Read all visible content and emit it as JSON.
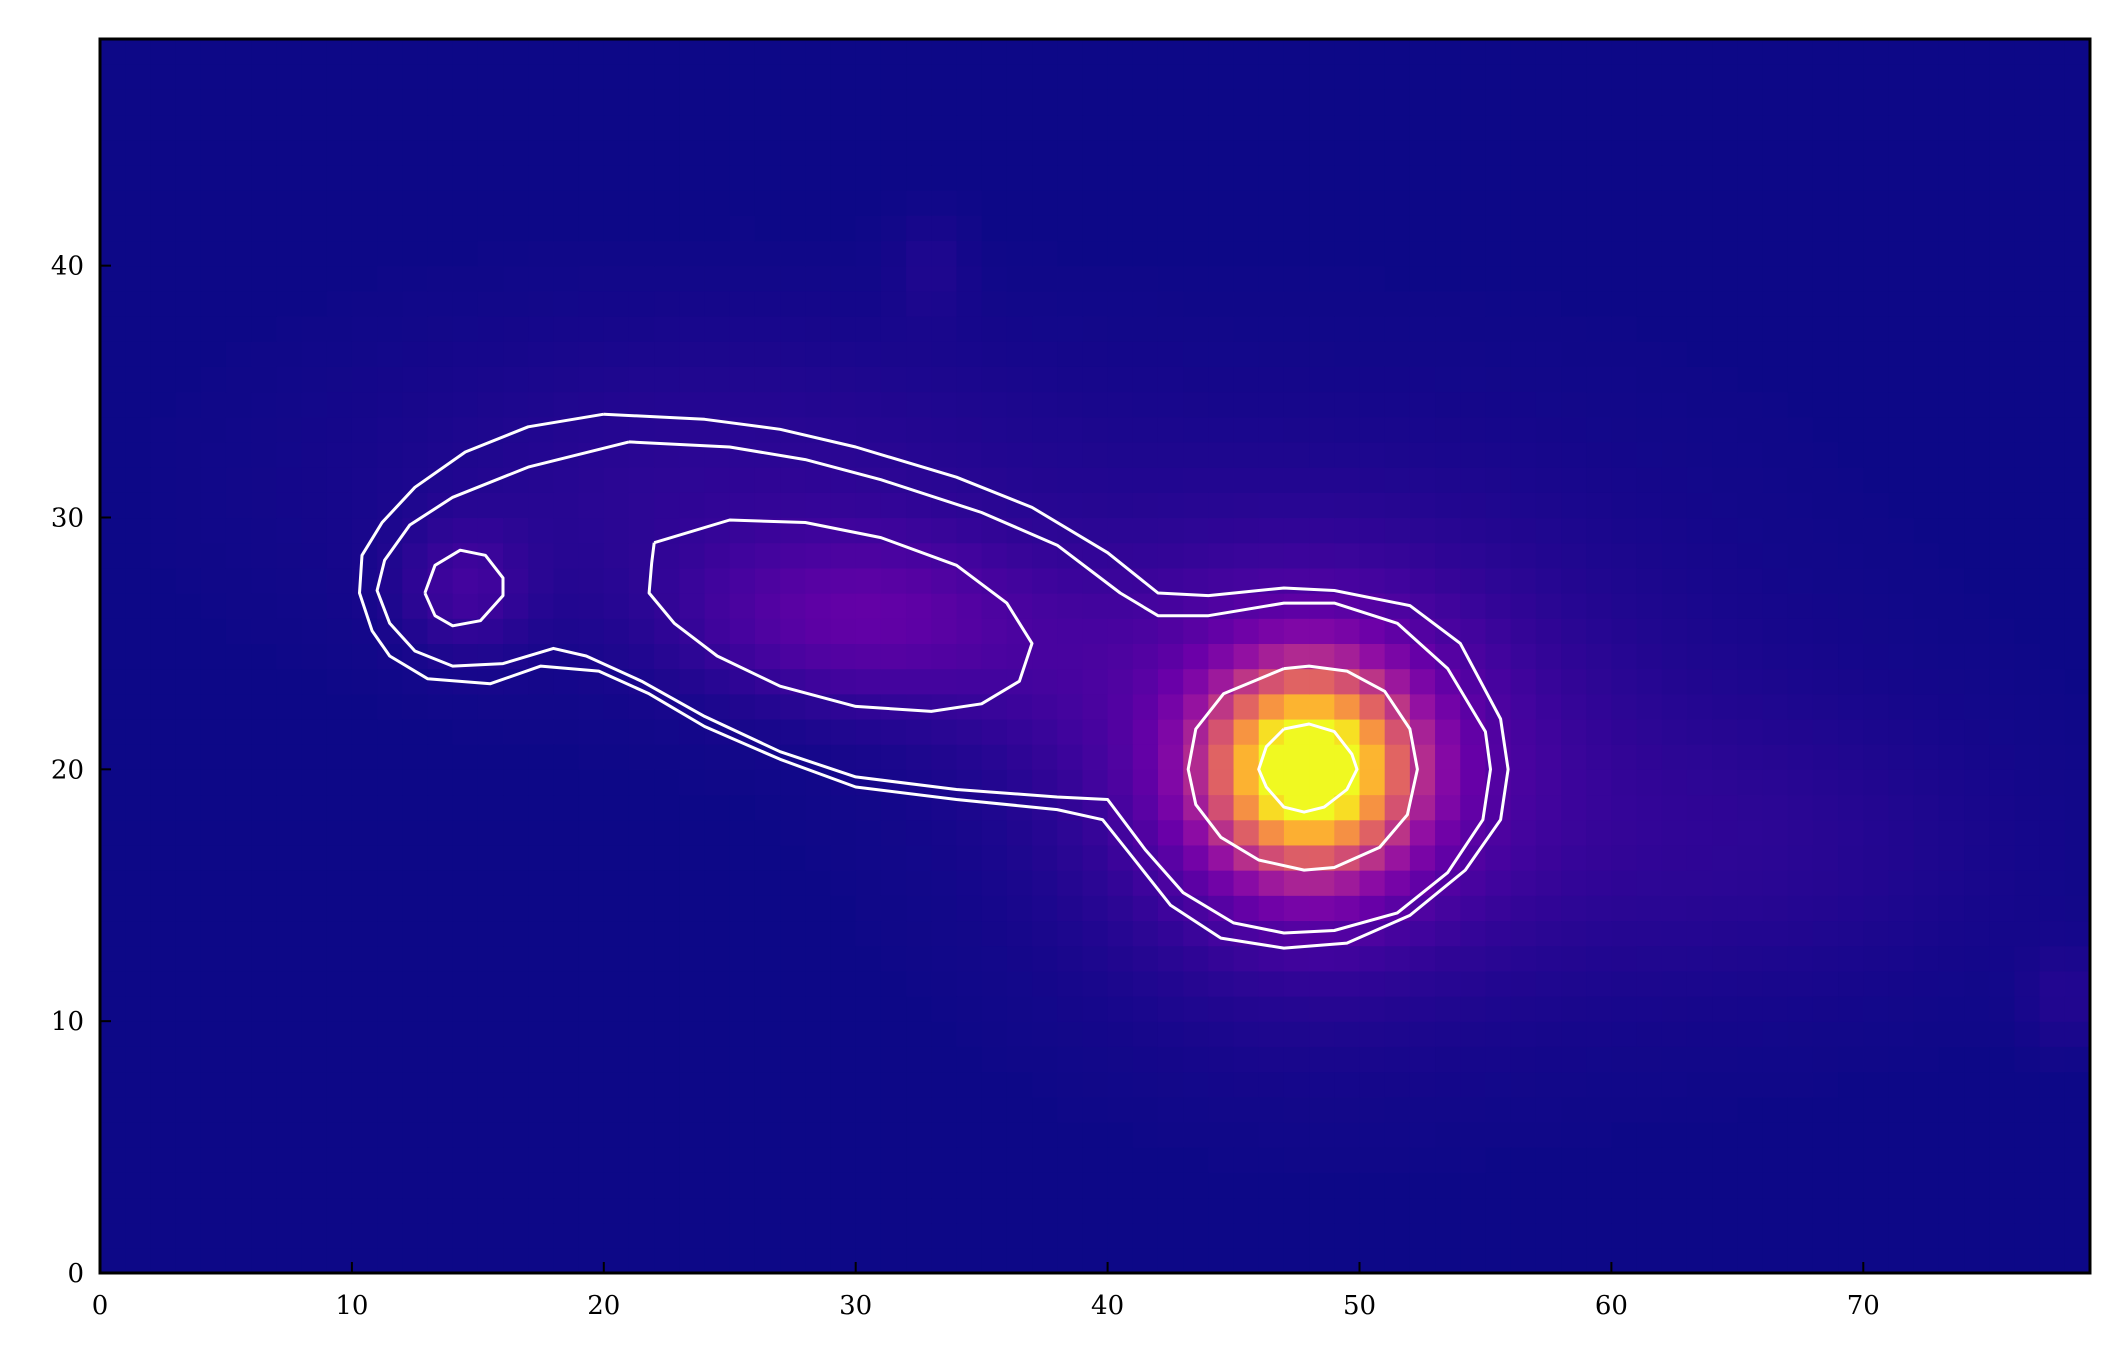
{
  "chart_data": {
    "type": "heatmap",
    "title": "",
    "xlabel": "",
    "ylabel": "",
    "xlim": [
      0,
      79
    ],
    "ylim": [
      0,
      49
    ],
    "grid": false,
    "legend": "none",
    "colormap": "plasma",
    "x_ticks": [
      {
        "value": 0,
        "label": "0"
      },
      {
        "value": 10,
        "label": "10"
      },
      {
        "value": 20,
        "label": "20"
      },
      {
        "value": 30,
        "label": "30"
      },
      {
        "value": 40,
        "label": "40"
      },
      {
        "value": 50,
        "label": "50"
      },
      {
        "value": 60,
        "label": "60"
      },
      {
        "value": 70,
        "label": "70"
      }
    ],
    "y_ticks": [
      {
        "value": 0,
        "label": "0"
      },
      {
        "value": 10,
        "label": "10"
      },
      {
        "value": 20,
        "label": "20"
      },
      {
        "value": 30,
        "label": "30"
      },
      {
        "value": 40,
        "label": "40"
      }
    ],
    "image": {
      "grid_shape": [
        49,
        79
      ],
      "background": "#0d0887",
      "components": [
        {
          "shape": "gaussian",
          "center": [
            48,
            20
          ],
          "sigma": [
            2.6,
            2.6
          ],
          "amplitude": 1.0
        },
        {
          "shape": "gaussian",
          "center": [
            48,
            20
          ],
          "sigma": [
            5.5,
            5.0
          ],
          "amplitude": 0.18
        },
        {
          "shape": "gaussian",
          "center": [
            30,
            26
          ],
          "sigma": [
            4.5,
            2.2
          ],
          "amplitude": 0.14
        },
        {
          "shape": "gaussian",
          "center": [
            14.5,
            27.2
          ],
          "sigma": [
            1.8,
            1.8
          ],
          "amplitude": 0.08
        },
        {
          "shape": "gaussian",
          "center": [
            25,
            31
          ],
          "sigma": [
            10.0,
            4.5
          ],
          "amplitude": 0.06
        },
        {
          "shape": "gaussian",
          "center": [
            51,
            22
          ],
          "sigma": [
            10.0,
            7.5
          ],
          "amplitude": 0.055
        },
        {
          "shape": "gaussian",
          "center": [
            66,
            17
          ],
          "sigma": [
            7.0,
            4.0
          ],
          "amplitude": 0.045
        },
        {
          "shape": "gaussian",
          "center": [
            38,
            24
          ],
          "sigma": [
            5.0,
            3.0
          ],
          "amplitude": 0.04
        },
        {
          "shape": "gaussian",
          "center": [
            33,
            40
          ],
          "sigma": [
            1.0,
            1.5
          ],
          "amplitude": 0.03
        },
        {
          "shape": "gaussian",
          "center": [
            78,
            11
          ],
          "sigma": [
            1.2,
            1.5
          ],
          "amplitude": 0.04
        }
      ]
    },
    "contours": {
      "color": "#ffffff",
      "lines": [
        [
          [
            20,
            34.1
          ],
          [
            24,
            33.9
          ],
          [
            27,
            33.5
          ],
          [
            30,
            32.8
          ],
          [
            34,
            31.6
          ],
          [
            37,
            30.4
          ],
          [
            40,
            28.6
          ],
          [
            42,
            27
          ],
          [
            44,
            26.9
          ],
          [
            47,
            27.2
          ],
          [
            49,
            27.1
          ],
          [
            52,
            26.5
          ],
          [
            54,
            25
          ],
          [
            55.6,
            22
          ],
          [
            55.9,
            20
          ],
          [
            55.6,
            18
          ],
          [
            54.2,
            16
          ],
          [
            52,
            14.2
          ],
          [
            49.5,
            13.1
          ],
          [
            47,
            12.9
          ],
          [
            44.5,
            13.3
          ],
          [
            42.5,
            14.6
          ],
          [
            41,
            16.5
          ],
          [
            39.8,
            18
          ],
          [
            38,
            18.4
          ],
          [
            34,
            18.8
          ],
          [
            30,
            19.3
          ],
          [
            27,
            20.4
          ],
          [
            24,
            21.7
          ],
          [
            21.8,
            23
          ],
          [
            19.8,
            23.9
          ],
          [
            17.5,
            24.1
          ],
          [
            15.5,
            23.4
          ],
          [
            13,
            23.6
          ],
          [
            11.5,
            24.5
          ],
          [
            10.8,
            25.5
          ],
          [
            10.3,
            27
          ],
          [
            10.4,
            28.5
          ],
          [
            11.2,
            29.8
          ],
          [
            12.5,
            31.2
          ],
          [
            14.5,
            32.6
          ],
          [
            17,
            33.6
          ],
          [
            20,
            34.1
          ]
        ],
        [
          [
            21,
            33
          ],
          [
            25,
            32.8
          ],
          [
            28,
            32.3
          ],
          [
            31,
            31.5
          ],
          [
            35,
            30.2
          ],
          [
            38,
            28.9
          ],
          [
            40.5,
            27
          ],
          [
            42,
            26.1
          ],
          [
            44,
            26.1
          ],
          [
            47,
            26.6
          ],
          [
            49,
            26.6
          ],
          [
            51.5,
            25.8
          ],
          [
            53.5,
            24
          ],
          [
            55,
            21.5
          ],
          [
            55.2,
            20
          ],
          [
            54.9,
            18
          ],
          [
            53.5,
            15.9
          ],
          [
            51.5,
            14.3
          ],
          [
            49,
            13.6
          ],
          [
            47,
            13.5
          ],
          [
            45,
            13.9
          ],
          [
            43,
            15.1
          ],
          [
            41.5,
            16.8
          ],
          [
            40,
            18.8
          ],
          [
            38,
            18.9
          ],
          [
            34,
            19.2
          ],
          [
            30,
            19.7
          ],
          [
            27,
            20.7
          ],
          [
            24,
            22.1
          ],
          [
            21.5,
            23.5
          ],
          [
            19.3,
            24.5
          ],
          [
            18,
            24.8
          ],
          [
            16,
            24.2
          ],
          [
            14,
            24.1
          ],
          [
            12.5,
            24.7
          ],
          [
            11.5,
            25.8
          ],
          [
            11,
            27.1
          ],
          [
            11.3,
            28.3
          ],
          [
            12.3,
            29.7
          ],
          [
            14,
            30.8
          ],
          [
            17,
            32
          ],
          [
            21,
            33
          ]
        ],
        [
          [
            22,
            29
          ],
          [
            25,
            29.9
          ],
          [
            28,
            29.8
          ],
          [
            31,
            29.2
          ],
          [
            34,
            28.1
          ],
          [
            36,
            26.6
          ],
          [
            37,
            25
          ],
          [
            36.5,
            23.5
          ],
          [
            35,
            22.6
          ],
          [
            33,
            22.3
          ],
          [
            30,
            22.5
          ],
          [
            27,
            23.3
          ],
          [
            24.5,
            24.5
          ],
          [
            22.8,
            25.8
          ],
          [
            21.8,
            27
          ],
          [
            21.9,
            28.2
          ],
          [
            22,
            29
          ]
        ],
        [
          [
            12.9,
            27
          ],
          [
            13.3,
            28.1
          ],
          [
            14.3,
            28.7
          ],
          [
            15.3,
            28.5
          ],
          [
            16,
            27.6
          ],
          [
            16,
            26.9
          ],
          [
            15.1,
            25.9
          ],
          [
            14,
            25.7
          ],
          [
            13.3,
            26.1
          ],
          [
            12.9,
            27
          ]
        ],
        [
          [
            47,
            24
          ],
          [
            48,
            24.1
          ],
          [
            49.5,
            23.9
          ],
          [
            51,
            23.1
          ],
          [
            52,
            21.6
          ],
          [
            52.3,
            20
          ],
          [
            51.9,
            18.2
          ],
          [
            50.8,
            16.9
          ],
          [
            49,
            16.1
          ],
          [
            47.8,
            16
          ],
          [
            46,
            16.4
          ],
          [
            44.5,
            17.3
          ],
          [
            43.5,
            18.6
          ],
          [
            43.2,
            20
          ],
          [
            43.5,
            21.6
          ],
          [
            44.6,
            23
          ],
          [
            47,
            24
          ]
        ],
        [
          [
            47,
            21.6
          ],
          [
            48,
            21.8
          ],
          [
            49,
            21.5
          ],
          [
            49.7,
            20.6
          ],
          [
            49.9,
            20
          ],
          [
            49.5,
            19.2
          ],
          [
            48.6,
            18.5
          ],
          [
            47.8,
            18.3
          ],
          [
            47,
            18.5
          ],
          [
            46.3,
            19.3
          ],
          [
            46,
            20
          ],
          [
            46.3,
            20.9
          ],
          [
            47,
            21.6
          ]
        ]
      ]
    }
  }
}
